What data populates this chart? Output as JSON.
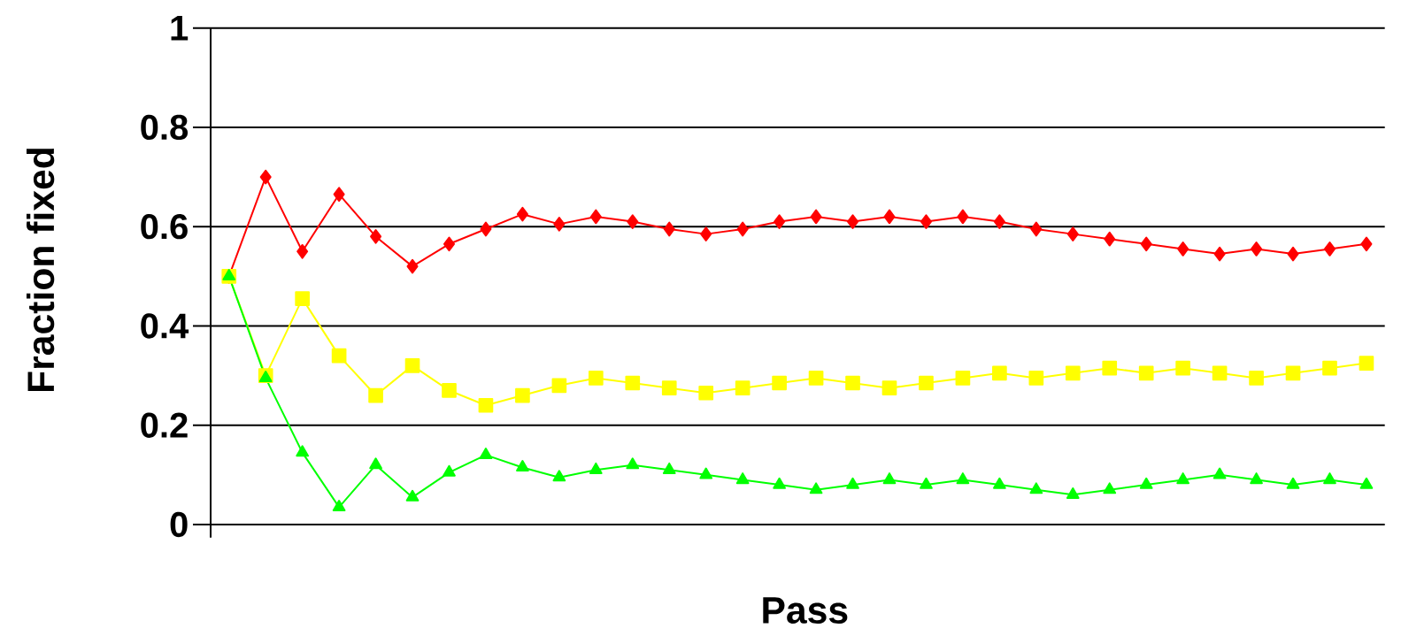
{
  "chart_data": {
    "type": "line",
    "xlabel": "Pass",
    "ylabel": "Fraction fixed",
    "categories": [
      null,
      null,
      null,
      null,
      null,
      null,
      null,
      null,
      null,
      null,
      null,
      null,
      null,
      null,
      null,
      null,
      null,
      null,
      null,
      null,
      null,
      null,
      null,
      null,
      null,
      null,
      null,
      null,
      null,
      null,
      null,
      null
    ],
    "series": [
      {
        "color": "#ff0000",
        "marker": "diamond",
        "values": [
          0.5,
          0.7,
          0.55,
          0.665,
          0.58,
          0.52,
          0.565,
          0.595,
          0.625,
          0.605,
          0.62,
          0.61,
          0.595,
          0.585,
          0.595,
          0.61,
          0.62,
          0.61,
          0.62,
          0.61,
          0.62,
          0.61,
          0.595,
          0.585,
          0.575,
          0.565,
          0.555,
          0.545,
          0.555,
          0.545,
          0.555,
          0.565
        ]
      },
      {
        "color": "#ffff00",
        "marker": "square",
        "values": [
          0.5,
          0.3,
          0.455,
          0.34,
          0.26,
          0.32,
          0.27,
          0.24,
          0.26,
          0.28,
          0.295,
          0.285,
          0.275,
          0.265,
          0.275,
          0.285,
          0.295,
          0.285,
          0.275,
          0.285,
          0.295,
          0.305,
          0.295,
          0.305,
          0.315,
          0.305,
          0.315,
          0.305,
          0.295,
          0.305,
          0.315,
          0.325
        ]
      },
      {
        "color": "#00ff00",
        "marker": "triangle",
        "values": [
          0.5,
          0.295,
          0.145,
          0.035,
          0.12,
          0.055,
          0.105,
          0.14,
          0.115,
          0.095,
          0.11,
          0.12,
          0.11,
          0.1,
          0.09,
          0.08,
          0.07,
          0.08,
          0.09,
          0.08,
          0.09,
          0.08,
          0.07,
          0.06,
          0.07,
          0.08,
          0.09,
          0.1,
          0.09,
          0.08,
          0.09,
          0.08
        ]
      }
    ],
    "ylim": [
      0,
      1
    ],
    "yticks": [
      0,
      0.2,
      0.4,
      0.6,
      0.8,
      1
    ],
    "grid": "y",
    "line_style": "solid"
  }
}
